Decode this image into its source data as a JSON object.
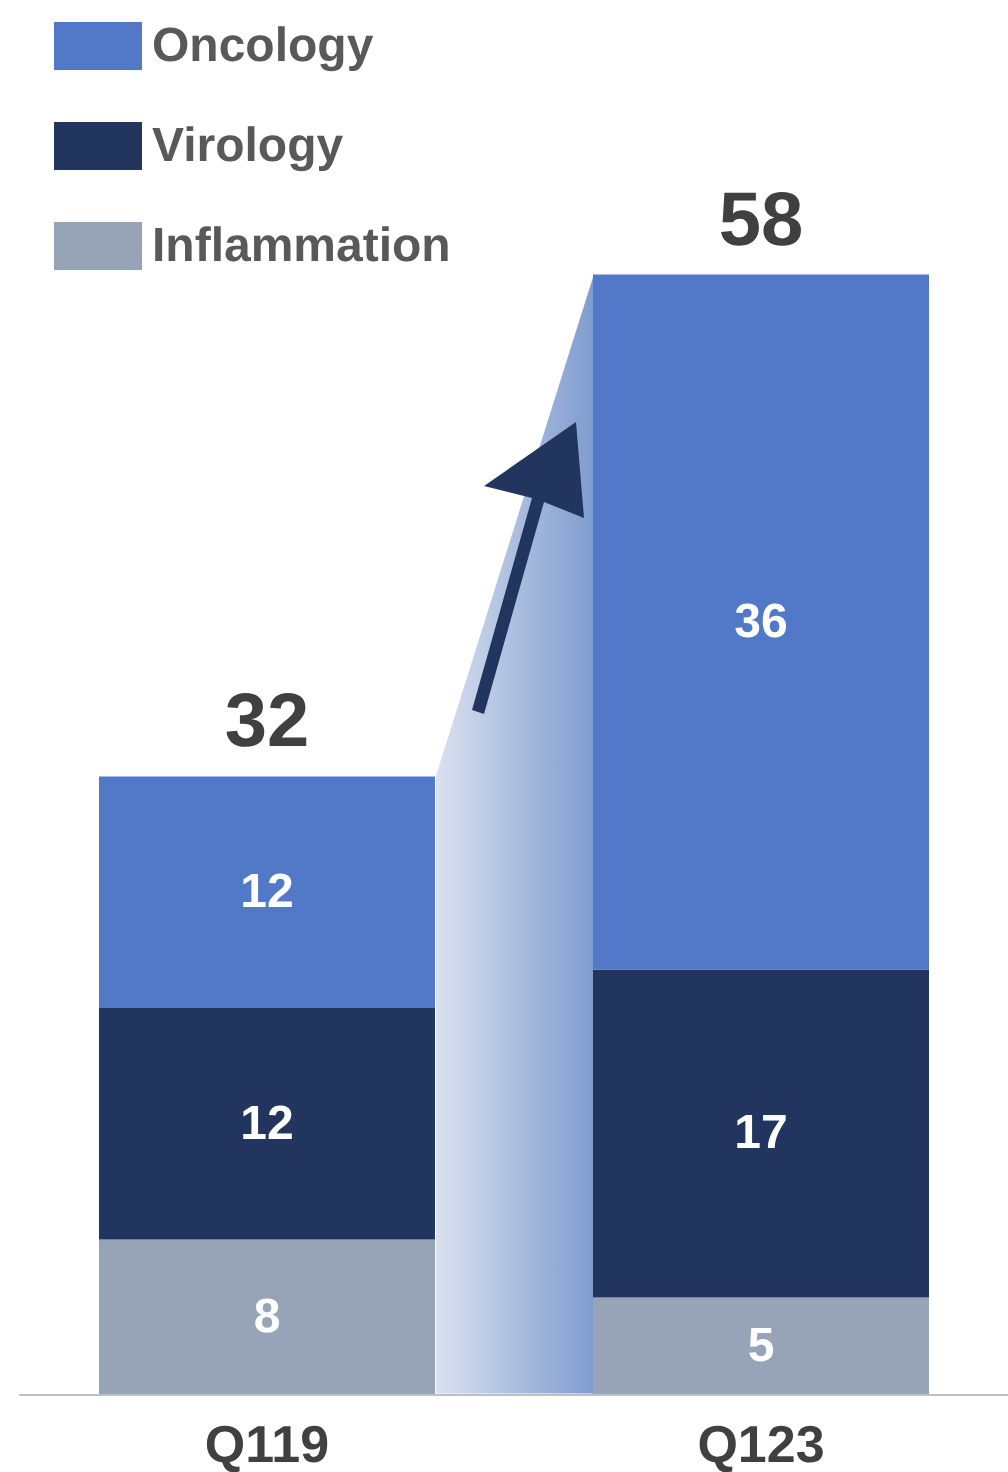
{
  "chart_data": {
    "type": "bar",
    "stacked": true,
    "categories": [
      "Q119",
      "Q123"
    ],
    "series": [
      {
        "name": "Inflammation",
        "color": "#97a3b6",
        "values": [
          8,
          5
        ]
      },
      {
        "name": "Virology",
        "color": "#22355e",
        "values": [
          12,
          17
        ]
      },
      {
        "name": "Oncology",
        "color": "#5179c8",
        "values": [
          12,
          36
        ]
      }
    ],
    "data_labels": true,
    "totals": [
      "32",
      "58"
    ],
    "legend": "top left"
  }
}
